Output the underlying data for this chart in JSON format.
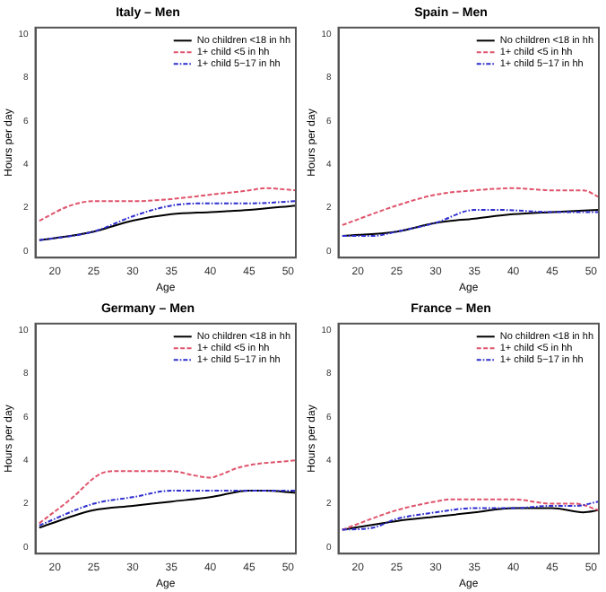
{
  "chart_data": [
    {
      "type": "line",
      "title": "Italy – Men",
      "xlabel": "Age",
      "ylabel": "Hours per day",
      "xlim": [
        17.5,
        51
      ],
      "xticks": [
        20,
        25,
        30,
        35,
        40,
        45,
        50
      ],
      "ylim": [
        -0.3,
        10.3
      ],
      "yticks": [
        0,
        2,
        4,
        6,
        8,
        10
      ],
      "grid": false,
      "legend": "top right",
      "marker": "none",
      "series": [
        {
          "name": "No children <18 in hh",
          "color": "#000000",
          "line_style": "solid",
          "x": [
            18,
            25,
            30,
            35,
            40,
            45,
            51
          ],
          "values": [
            0.5,
            0.9,
            1.4,
            1.7,
            1.8,
            1.9,
            2.1
          ]
        },
        {
          "name": "1+ child <5 in hh",
          "color": "#df536b",
          "line_style": "dashed",
          "x": [
            18,
            22,
            25,
            30,
            35,
            40,
            45,
            47,
            51
          ],
          "values": [
            1.4,
            2.1,
            2.3,
            2.3,
            2.4,
            2.6,
            2.8,
            2.9,
            2.8
          ]
        },
        {
          "name": "1+ child 5−17 in hh",
          "color": "#2e2ecf",
          "line_style": "dotted",
          "x": [
            18,
            25,
            30,
            35,
            40,
            45,
            51
          ],
          "values": [
            0.5,
            0.9,
            1.6,
            2.1,
            2.2,
            2.2,
            2.3
          ]
        }
      ]
    },
    {
      "type": "line",
      "title": "Spain – Men",
      "xlabel": "Age",
      "ylabel": "Hours per day",
      "xlim": [
        17.5,
        51
      ],
      "xticks": [
        20,
        25,
        30,
        35,
        40,
        45,
        50
      ],
      "ylim": [
        -0.3,
        10.3
      ],
      "yticks": [
        0,
        2,
        4,
        6,
        8,
        10
      ],
      "grid": false,
      "legend": "top right",
      "marker": "none",
      "series": [
        {
          "name": "No children <18 in hh",
          "color": "#000000",
          "line_style": "solid",
          "x": [
            18,
            25,
            30,
            35,
            40,
            45,
            51
          ],
          "values": [
            0.7,
            0.9,
            1.3,
            1.5,
            1.7,
            1.8,
            1.9
          ]
        },
        {
          "name": "1+ child <5 in hh",
          "color": "#df536b",
          "line_style": "dashed",
          "x": [
            18,
            25,
            30,
            35,
            40,
            45,
            49,
            51
          ],
          "values": [
            1.2,
            2.1,
            2.6,
            2.8,
            2.9,
            2.8,
            2.8,
            2.5
          ]
        },
        {
          "name": "1+ child 5−17 in hh",
          "color": "#2e2ecf",
          "line_style": "dotted",
          "x": [
            18,
            22,
            25,
            30,
            35,
            38,
            45,
            51
          ],
          "values": [
            0.7,
            0.7,
            0.9,
            1.3,
            1.9,
            1.9,
            1.8,
            1.8
          ]
        }
      ]
    },
    {
      "type": "line",
      "title": "Germany – Men",
      "xlabel": "Age",
      "ylabel": "Hours per day",
      "xlim": [
        17.5,
        51
      ],
      "xticks": [
        20,
        25,
        30,
        35,
        40,
        45,
        50
      ],
      "ylim": [
        -0.3,
        10.3
      ],
      "yticks": [
        0,
        2,
        4,
        6,
        8,
        10
      ],
      "grid": false,
      "legend": "top right",
      "marker": "none",
      "series": [
        {
          "name": "No children <18 in hh",
          "color": "#000000",
          "line_style": "solid",
          "x": [
            18,
            25,
            30,
            35,
            40,
            45,
            47,
            51
          ],
          "values": [
            0.9,
            1.7,
            1.9,
            2.1,
            2.3,
            2.6,
            2.6,
            2.5
          ]
        },
        {
          "name": "1+ child <5 in hh",
          "color": "#df536b",
          "line_style": "dashed",
          "x": [
            18,
            22,
            26,
            28,
            35,
            38,
            40,
            41,
            44,
            51
          ],
          "values": [
            1.1,
            2.2,
            3.4,
            3.5,
            3.5,
            3.3,
            3.2,
            3.3,
            3.7,
            4.0
          ]
        },
        {
          "name": "1+ child 5−17 in hh",
          "color": "#2e2ecf",
          "line_style": "dotted",
          "x": [
            18,
            25,
            30,
            35,
            40,
            45,
            51
          ],
          "values": [
            1.0,
            2.0,
            2.3,
            2.6,
            2.6,
            2.6,
            2.6
          ]
        }
      ]
    },
    {
      "type": "line",
      "title": "France – Men",
      "xlabel": "Age",
      "ylabel": "Hours per day",
      "xlim": [
        17.5,
        51
      ],
      "xticks": [
        20,
        25,
        30,
        35,
        40,
        45,
        50
      ],
      "ylim": [
        -0.3,
        10.3
      ],
      "yticks": [
        0,
        2,
        4,
        6,
        8,
        10
      ],
      "grid": false,
      "legend": "top right",
      "marker": "none",
      "series": [
        {
          "name": "No children <18 in hh",
          "color": "#000000",
          "line_style": "solid",
          "x": [
            18,
            25,
            30,
            35,
            40,
            45,
            49,
            51
          ],
          "values": [
            0.8,
            1.2,
            1.4,
            1.6,
            1.8,
            1.8,
            1.6,
            1.7
          ]
        },
        {
          "name": "1+ child <5 in hh",
          "color": "#df536b",
          "line_style": "dashed",
          "x": [
            18,
            25,
            30,
            32,
            40,
            45,
            48,
            51
          ],
          "values": [
            0.8,
            1.7,
            2.1,
            2.2,
            2.2,
            2.0,
            2.0,
            1.7
          ]
        },
        {
          "name": "1+ child 5−17 in hh",
          "color": "#2e2ecf",
          "line_style": "dotted",
          "x": [
            18,
            22,
            25,
            30,
            35,
            40,
            45,
            48,
            51
          ],
          "values": [
            0.8,
            0.9,
            1.3,
            1.6,
            1.8,
            1.8,
            1.9,
            1.9,
            2.1
          ]
        }
      ]
    }
  ]
}
